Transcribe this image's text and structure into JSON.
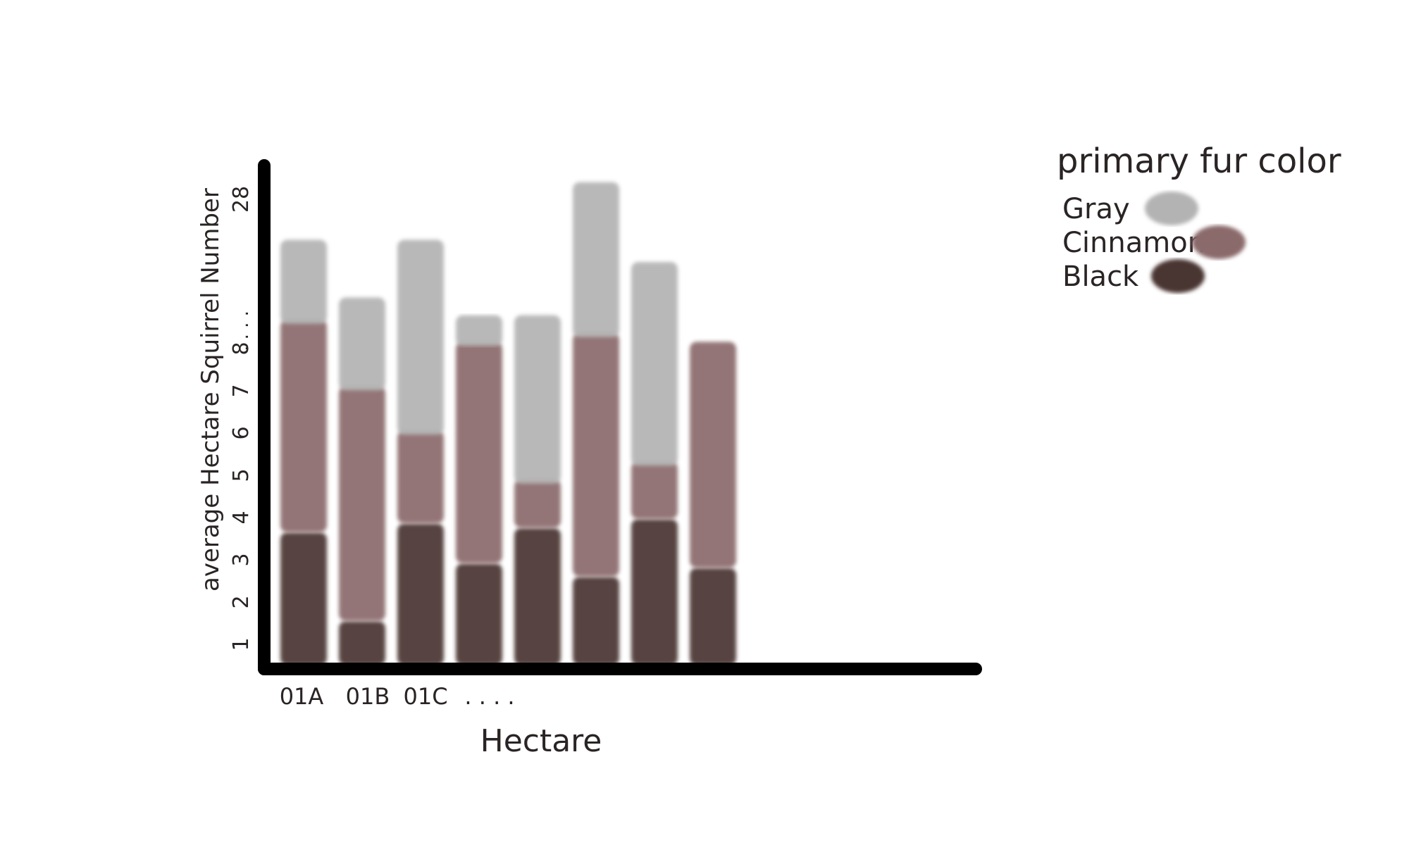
{
  "chart_data": {
    "type": "bar",
    "title": "",
    "xlabel": "Hectare",
    "ylabel": "average Hectare Squirrel Number",
    "y_ticks": [
      "1",
      "2",
      "3",
      "4",
      "5",
      "6",
      "7",
      "8",
      ". . . .",
      "28"
    ],
    "x_tick_labels": [
      "01A",
      "01B",
      "01C",
      ". . . ."
    ],
    "categories": [
      "01A",
      "01B",
      "01C",
      "",
      "",
      "",
      "",
      ""
    ],
    "series": [
      {
        "name": "Black",
        "values": [
          3.0,
          1.0,
          3.2,
          2.3,
          3.1,
          2.0,
          3.3,
          2.2
        ]
      },
      {
        "name": "Cinnamon",
        "values": [
          4.7,
          5.2,
          2.0,
          4.9,
          1.0,
          5.4,
          1.2,
          5.0
        ]
      },
      {
        "name": "Gray",
        "values": [
          1.8,
          2.0,
          4.3,
          0.6,
          3.7,
          3.4,
          4.5,
          0.0
        ]
      }
    ],
    "legend": {
      "title": "primary fur color",
      "placement": "top-right",
      "entries": [
        "Gray",
        "Cinnamon",
        "Black"
      ]
    },
    "colors": {
      "Gray": "#b3b3b3",
      "Cinnamon": "#8b6a6c",
      "Black": "#483533"
    },
    "grid": false
  }
}
